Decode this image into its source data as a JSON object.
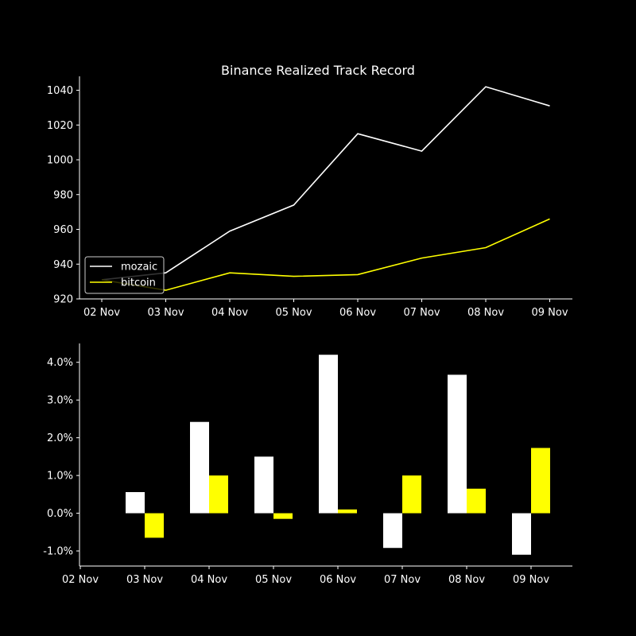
{
  "chart_data": [
    {
      "type": "line",
      "title": "Binance Realized Track Record",
      "xlabel": "",
      "ylabel": "",
      "categories": [
        "02 Nov",
        "03 Nov",
        "04 Nov",
        "05 Nov",
        "06 Nov",
        "07 Nov",
        "08 Nov",
        "09 Nov"
      ],
      "series": [
        {
          "name": "mozaic",
          "color": "#ffffff",
          "values": [
            931,
            935,
            959,
            974,
            1015,
            1005,
            1042,
            1031
          ]
        },
        {
          "name": "bitcoin",
          "color": "#ffff00",
          "values": [
            931,
            925,
            935,
            933,
            934,
            943.5,
            949.5,
            966
          ]
        }
      ],
      "ylim": [
        920,
        1048
      ],
      "yticks": [
        920,
        940,
        960,
        980,
        1000,
        1020,
        1040
      ],
      "grid": false,
      "legend": "lower-left"
    },
    {
      "type": "bar",
      "title": "",
      "xlabel": "",
      "ylabel": "",
      "categories": [
        "02 Nov",
        "03 Nov",
        "04 Nov",
        "05 Nov",
        "06 Nov",
        "07 Nov",
        "08 Nov",
        "09 Nov"
      ],
      "series": [
        {
          "name": "",
          "color": "#ffffff",
          "values": [
            null,
            0.56,
            2.42,
            1.5,
            4.2,
            -0.92,
            3.67,
            -1.1
          ]
        },
        {
          "name": "",
          "color": "#ffff00",
          "values": [
            null,
            -0.65,
            1.0,
            -0.15,
            0.1,
            1.0,
            0.65,
            1.73
          ]
        }
      ],
      "ylim": [
        -1.4,
        4.5
      ],
      "yticks": [
        -1.0,
        0.0,
        1.0,
        2.0,
        3.0,
        4.0
      ],
      "ytick_labels": [
        "-1.0%",
        "0.0%",
        "1.0%",
        "2.0%",
        "3.0%",
        "4.0%"
      ],
      "grid": false,
      "legend": "none"
    }
  ]
}
